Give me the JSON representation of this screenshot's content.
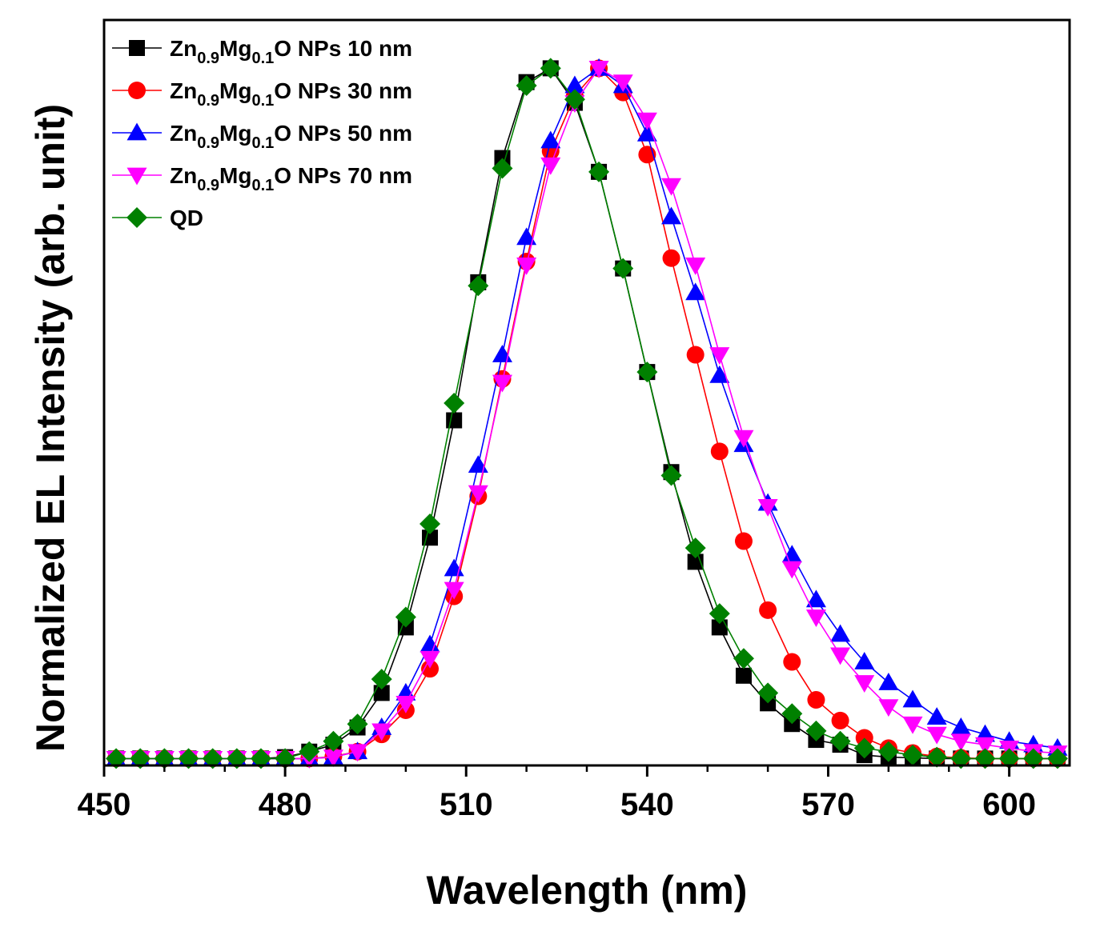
{
  "chart_data": {
    "type": "line",
    "title": "",
    "xlabel": "Wavelength (nm)",
    "ylabel": "Normalized EL Intensity (arb. unit)",
    "xlim": [
      450,
      610
    ],
    "ylim": [
      -0.01,
      1.07
    ],
    "xticks": [
      450,
      480,
      510,
      540,
      570,
      600
    ],
    "xtick_labels": [
      "450",
      "480",
      "510",
      "540",
      "570",
      "600"
    ],
    "show_y_ticks": false,
    "grid": false,
    "legend": "top-left",
    "x": [
      452,
      456,
      460,
      464,
      468,
      472,
      476,
      480,
      484,
      488,
      492,
      496,
      500,
      504,
      508,
      512,
      516,
      520,
      524,
      528,
      532,
      536,
      540,
      544,
      548,
      552,
      556,
      560,
      564,
      568,
      572,
      576,
      580,
      584,
      588,
      592,
      596,
      600,
      604,
      608
    ],
    "series": [
      {
        "name": "Zn0.9Mg0.1O NPs 10 nm",
        "label_parts": [
          [
            "Zn",
            "n"
          ],
          [
            "0.9",
            "sub"
          ],
          [
            "Mg",
            "n"
          ],
          [
            "0.1",
            "sub"
          ],
          [
            "O NPs 10 nm",
            "n"
          ]
        ],
        "color": "#000000",
        "marker": "square",
        "values": [
          0,
          0,
          0,
          0,
          0,
          0,
          0,
          0.002,
          0.01,
          0.02,
          0.045,
          0.095,
          0.19,
          0.32,
          0.49,
          0.69,
          0.87,
          0.98,
          1.0,
          0.95,
          0.85,
          0.71,
          0.56,
          0.415,
          0.285,
          0.19,
          0.12,
          0.08,
          0.05,
          0.027,
          0.02,
          0.005,
          0.002,
          0.001,
          0,
          0,
          0,
          0,
          0,
          0
        ]
      },
      {
        "name": "Zn0.9Mg0.1O NPs 30 nm",
        "label_parts": [
          [
            "Zn",
            "n"
          ],
          [
            "0.9",
            "sub"
          ],
          [
            "Mg",
            "n"
          ],
          [
            "0.1",
            "sub"
          ],
          [
            "O NPs 30 nm",
            "n"
          ]
        ],
        "color": "#ff0000",
        "marker": "circle",
        "values": [
          0,
          0,
          0,
          0,
          0,
          0,
          0,
          0,
          0,
          0.003,
          0.01,
          0.035,
          0.07,
          0.13,
          0.235,
          0.38,
          0.55,
          0.72,
          0.88,
          0.96,
          1.0,
          0.965,
          0.875,
          0.725,
          0.585,
          0.445,
          0.315,
          0.215,
          0.14,
          0.085,
          0.055,
          0.03,
          0.015,
          0.008,
          0.003,
          0.001,
          0,
          0,
          0,
          0
        ]
      },
      {
        "name": "Zn0.9Mg0.1O NPs 50 nm",
        "label_parts": [
          [
            "Zn",
            "n"
          ],
          [
            "0.9",
            "sub"
          ],
          [
            "Mg",
            "n"
          ],
          [
            "0.1",
            "sub"
          ],
          [
            "O NPs 50 nm",
            "n"
          ]
        ],
        "color": "#0000ff",
        "marker": "triangle-up",
        "values": [
          0,
          0,
          0,
          0,
          0,
          0,
          0,
          0,
          0,
          0.002,
          0.01,
          0.045,
          0.095,
          0.165,
          0.275,
          0.425,
          0.585,
          0.755,
          0.895,
          0.975,
          1.0,
          0.975,
          0.905,
          0.785,
          0.675,
          0.555,
          0.455,
          0.37,
          0.295,
          0.23,
          0.18,
          0.14,
          0.11,
          0.085,
          0.06,
          0.045,
          0.035,
          0.025,
          0.02,
          0.015
        ]
      },
      {
        "name": "Zn0.9Mg0.1O NPs 70 nm",
        "label_parts": [
          [
            "Zn",
            "n"
          ],
          [
            "0.9",
            "sub"
          ],
          [
            "Mg",
            "n"
          ],
          [
            "0.1",
            "sub"
          ],
          [
            "O NPs 70 nm",
            "n"
          ]
        ],
        "color": "#ff00ff",
        "marker": "triangle-down",
        "values": [
          0,
          0,
          0,
          0,
          0,
          0,
          0,
          0,
          0,
          0.002,
          0.01,
          0.04,
          0.08,
          0.145,
          0.245,
          0.385,
          0.545,
          0.715,
          0.86,
          0.95,
          1.0,
          0.98,
          0.925,
          0.83,
          0.715,
          0.585,
          0.465,
          0.365,
          0.275,
          0.205,
          0.15,
          0.11,
          0.075,
          0.05,
          0.035,
          0.025,
          0.02,
          0.015,
          0.01,
          0.008
        ]
      },
      {
        "name": "QD",
        "label_parts": [
          [
            "QD",
            "n"
          ]
        ],
        "color": "#008000",
        "marker": "diamond",
        "values": [
          0,
          0,
          0,
          0,
          0,
          0,
          0,
          0,
          0.01,
          0.025,
          0.05,
          0.115,
          0.205,
          0.34,
          0.515,
          0.685,
          0.855,
          0.975,
          1.0,
          0.955,
          0.85,
          0.71,
          0.56,
          0.41,
          0.305,
          0.21,
          0.145,
          0.095,
          0.065,
          0.04,
          0.025,
          0.015,
          0.01,
          0.005,
          0.002,
          0,
          0,
          0,
          0,
          0
        ]
      }
    ]
  }
}
